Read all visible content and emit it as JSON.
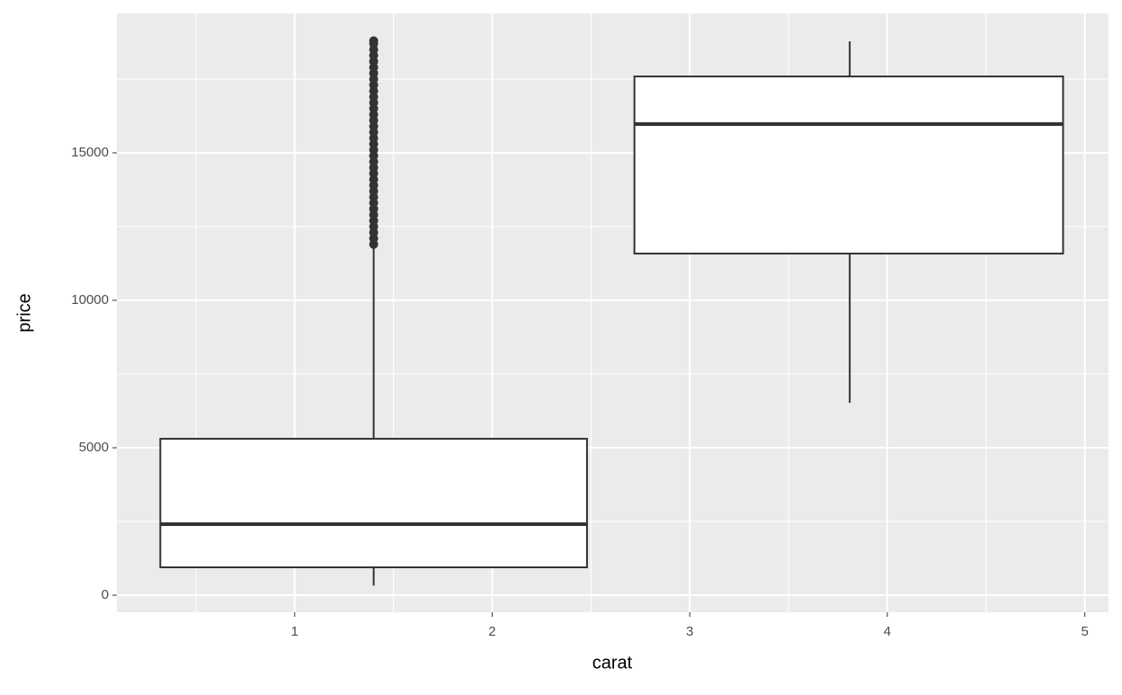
{
  "chart_data": {
    "type": "boxplot",
    "x_label": "carat",
    "y_label": "price",
    "xlim": [
      0.1,
      5.12
    ],
    "ylim": [
      -579,
      19726
    ],
    "xticks": [
      1,
      2,
      3,
      4,
      5
    ],
    "yticks": [
      0,
      5000,
      10000,
      15000
    ],
    "x_minor_breaks": [
      0.5,
      1.5,
      2.5,
      3.5,
      4.5
    ],
    "y_minor_breaks": [
      2500,
      7500,
      12500,
      17500
    ],
    "grid": true,
    "panel_color": "#ebebeb",
    "box_fill": "#ffffff",
    "line_color": "#333333",
    "boxes": [
      {
        "xmin": 0.32,
        "xmax": 2.48,
        "x": 1.4,
        "whisker_low": 326,
        "q1": 945,
        "median": 2409,
        "q3": 5305,
        "whisker_high": 11800,
        "outliers": [
          11900,
          12100,
          12300,
          12500,
          12700,
          12900,
          13100,
          13300,
          13500,
          13700,
          13900,
          14100,
          14300,
          14500,
          14700,
          14900,
          15100,
          15300,
          15500,
          15700,
          15900,
          16100,
          16300,
          16500,
          16700,
          16900,
          17100,
          17300,
          17500,
          17700,
          17900,
          18100,
          18300,
          18500,
          18700,
          18800
        ]
      },
      {
        "xmin": 2.72,
        "xmax": 4.89,
        "x": 3.81,
        "whisker_low": 6524,
        "q1": 11585,
        "median": 15976,
        "q3": 17591,
        "whisker_high": 18780,
        "outliers": []
      }
    ]
  }
}
